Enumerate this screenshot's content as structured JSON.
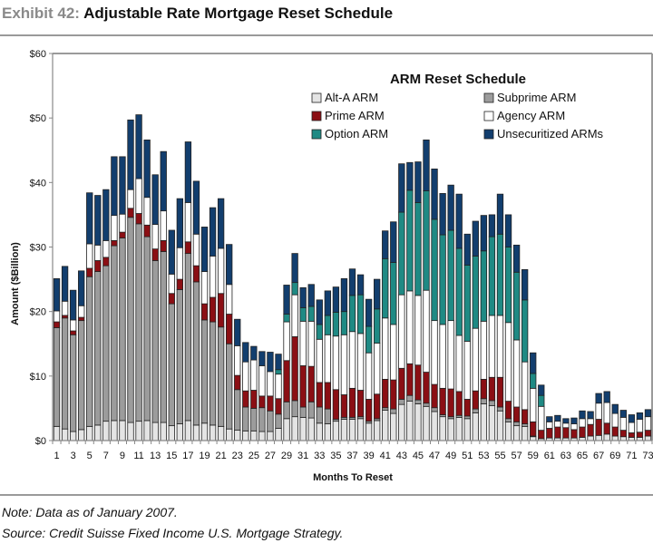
{
  "header": {
    "exhibit_number": "Exhibit 42:",
    "exhibit_title": "Adjustable Rate Mortgage Reset Schedule"
  },
  "footer": {
    "note": "Note: Data as of January 2007.",
    "source": "Source: Credit Suisse Fixed Income U.S. Mortgage Strategy."
  },
  "chart_data": {
    "type": "bar",
    "stacked": true,
    "title": "ARM Reset Schedule",
    "xlabel": "Months To Reset",
    "ylabel": "Amount ($Billion)",
    "ylim": [
      0,
      60
    ],
    "yticks": [
      0,
      10,
      20,
      30,
      40,
      50,
      60
    ],
    "ytick_labels": [
      "$0",
      "$10",
      "$20",
      "$30",
      "$40",
      "$50",
      "$60"
    ],
    "grid": false,
    "legend_position": "top-right",
    "categories": [
      1,
      2,
      3,
      4,
      5,
      6,
      7,
      8,
      9,
      10,
      11,
      12,
      13,
      14,
      15,
      16,
      17,
      18,
      19,
      20,
      21,
      22,
      23,
      24,
      25,
      26,
      27,
      28,
      29,
      30,
      31,
      32,
      33,
      34,
      35,
      36,
      37,
      38,
      39,
      40,
      41,
      42,
      43,
      44,
      45,
      46,
      47,
      48,
      49,
      50,
      51,
      52,
      53,
      54,
      55,
      56,
      57,
      58,
      59,
      60,
      61,
      62,
      63,
      64,
      65,
      66,
      67,
      68,
      69,
      70,
      71,
      72,
      73
    ],
    "xtick_labels": [
      "1",
      "3",
      "5",
      "7",
      "9",
      "11",
      "13",
      "15",
      "17",
      "19",
      "21",
      "23",
      "25",
      "27",
      "29",
      "31",
      "33",
      "35",
      "37",
      "39",
      "41",
      "43",
      "45",
      "47",
      "49",
      "51",
      "53",
      "55",
      "57",
      "59",
      "61",
      "63",
      "65",
      "67",
      "69",
      "71",
      "73"
    ],
    "series": [
      {
        "name": "Alt-A ARM",
        "color": "#e4e4e4",
        "values": [
          2.2,
          1.8,
          1.4,
          1.7,
          2.2,
          2.4,
          3.0,
          3.1,
          3.1,
          2.8,
          3.0,
          3.1,
          2.8,
          2.8,
          2.3,
          2.6,
          3.1,
          2.4,
          2.7,
          2.4,
          2.2,
          1.8,
          1.6,
          1.5,
          1.5,
          1.4,
          1.4,
          1.9,
          3.4,
          3.7,
          3.6,
          3.5,
          2.7,
          2.6,
          3.0,
          3.3,
          3.3,
          3.4,
          2.7,
          3.1,
          4.7,
          4.2,
          5.6,
          6.1,
          5.7,
          5.3,
          4.5,
          3.7,
          3.4,
          3.6,
          3.4,
          4.3,
          5.7,
          5.4,
          4.6,
          2.9,
          2.3,
          2.2,
          0.6,
          0.3,
          0.4,
          0.4,
          0.4,
          0.4,
          0.5,
          0.7,
          0.8,
          1.0,
          0.7,
          0.6,
          0.5,
          0.5,
          0.7
        ]
      },
      {
        "name": "Subprime ARM",
        "color": "#9c9c9c",
        "values": [
          15.3,
          17.2,
          15.0,
          16.9,
          23.2,
          23.8,
          24.1,
          27.1,
          28.3,
          31.8,
          30.6,
          28.5,
          25.1,
          26.5,
          18.9,
          20.8,
          25.9,
          22.2,
          16.0,
          16.0,
          15.4,
          13.2,
          6.3,
          3.7,
          3.5,
          3.7,
          3.2,
          2.2,
          2.6,
          2.5,
          1.6,
          2.5,
          2.5,
          2.3,
          0.3,
          0.3,
          0.3,
          0.3,
          0.3,
          0.3,
          0.4,
          0.7,
          0.8,
          0.9,
          0.6,
          0.5,
          0.6,
          0.3,
          0.3,
          0.3,
          0.4,
          0.6,
          0.8,
          0.8,
          0.6,
          0.5,
          0.6,
          0.4,
          0.1,
          0.0,
          0.0,
          0.0,
          0.0,
          0.0,
          0.0,
          0.0,
          0.0,
          0.0,
          0.0,
          0.0,
          0.0,
          0.0,
          0.0
        ]
      },
      {
        "name": "Prime ARM",
        "color": "#8b0f14",
        "values": [
          0.9,
          0.4,
          0.6,
          0.5,
          1.3,
          1.7,
          1.3,
          0.8,
          0.9,
          1.4,
          1.6,
          1.8,
          1.8,
          1.7,
          1.6,
          1.6,
          1.8,
          2.5,
          2.5,
          3.8,
          5.2,
          4.6,
          2.2,
          2.5,
          2.8,
          1.8,
          2.3,
          2.4,
          6.4,
          9.9,
          6.4,
          5.5,
          3.8,
          4.1,
          4.6,
          3.5,
          4.5,
          4.1,
          3.4,
          3.8,
          4.4,
          4.5,
          4.8,
          4.9,
          5.4,
          4.8,
          3.6,
          4.1,
          4.3,
          3.7,
          2.6,
          2.8,
          3.0,
          3.6,
          4.6,
          2.7,
          2.3,
          2.2,
          2.2,
          1.3,
          1.5,
          1.7,
          1.6,
          1.3,
          1.6,
          1.8,
          2.5,
          1.7,
          1.4,
          1.0,
          0.7,
          0.8,
          0.9
        ]
      },
      {
        "name": "Agency ARM",
        "color": "#ffffff",
        "values": [
          1.7,
          2.2,
          1.7,
          1.8,
          3.8,
          2.4,
          2.6,
          3.9,
          2.8,
          2.9,
          5.4,
          4.3,
          3.8,
          4.6,
          3.0,
          4.9,
          6.1,
          4.9,
          5.0,
          6.4,
          7.0,
          4.6,
          4.6,
          4.5,
          4.7,
          4.7,
          3.8,
          3.8,
          6.0,
          6.5,
          6.9,
          7.0,
          6.7,
          7.4,
          8.3,
          9.3,
          8.8,
          8.8,
          7.2,
          7.9,
          9.5,
          8.6,
          11.4,
          11.3,
          10.8,
          12.7,
          9.9,
          9.9,
          10.6,
          8.7,
          9.0,
          9.7,
          9.0,
          9.6,
          9.6,
          12.2,
          10.4,
          7.4,
          5.2,
          3.7,
          1.0,
          0.9,
          0.7,
          0.9,
          1.3,
          0.9,
          2.5,
          3.2,
          2.1,
          2.0,
          1.6,
          2.0,
          2.1
        ]
      },
      {
        "name": "Option ARM",
        "color": "#1f8a84",
        "values": [
          0.0,
          0.0,
          0.0,
          0.0,
          0.0,
          0.0,
          0.0,
          0.0,
          0.0,
          0.0,
          0.0,
          0.0,
          0.0,
          0.0,
          0.0,
          0.0,
          0.0,
          0.0,
          0.0,
          0.0,
          0.0,
          0.0,
          0.0,
          0.0,
          0.0,
          0.0,
          0.0,
          0.7,
          1.2,
          1.9,
          2.1,
          2.3,
          2.3,
          3.0,
          3.7,
          3.6,
          5.6,
          6.0,
          4.1,
          5.3,
          9.2,
          9.6,
          12.8,
          15.6,
          14.4,
          15.4,
          15.7,
          13.9,
          14.0,
          13.5,
          11.8,
          11.2,
          10.9,
          12.2,
          12.6,
          11.7,
          10.5,
          9.6,
          2.3,
          1.7,
          0.0,
          0.0,
          0.0,
          0.0,
          0.0,
          0.0,
          0.0,
          0.0,
          0.0,
          0.0,
          0.0,
          0.0,
          0.0
        ]
      },
      {
        "name": "Unsecuritized ARMs",
        "color": "#123e6e",
        "values": [
          5.0,
          5.4,
          4.6,
          5.4,
          7.9,
          7.7,
          7.9,
          9.1,
          8.9,
          10.8,
          9.9,
          8.9,
          7.7,
          9.2,
          6.8,
          7.6,
          9.4,
          8.2,
          6.9,
          7.5,
          7.7,
          6.2,
          4.1,
          3.0,
          2.1,
          2.2,
          3.0,
          2.4,
          4.5,
          4.5,
          3.1,
          3.4,
          3.8,
          3.8,
          3.9,
          5.1,
          4.1,
          3.1,
          4.2,
          4.6,
          4.3,
          6.3,
          7.5,
          4.3,
          6.3,
          7.9,
          7.8,
          6.4,
          7.0,
          8.4,
          4.8,
          5.4,
          5.5,
          3.4,
          6.2,
          5.0,
          4.2,
          4.7,
          3.2,
          1.6,
          0.8,
          0.9,
          0.7,
          0.9,
          1.2,
          1.1,
          1.5,
          1.7,
          1.4,
          1.1,
          1.2,
          1.0,
          1.1
        ]
      }
    ]
  }
}
